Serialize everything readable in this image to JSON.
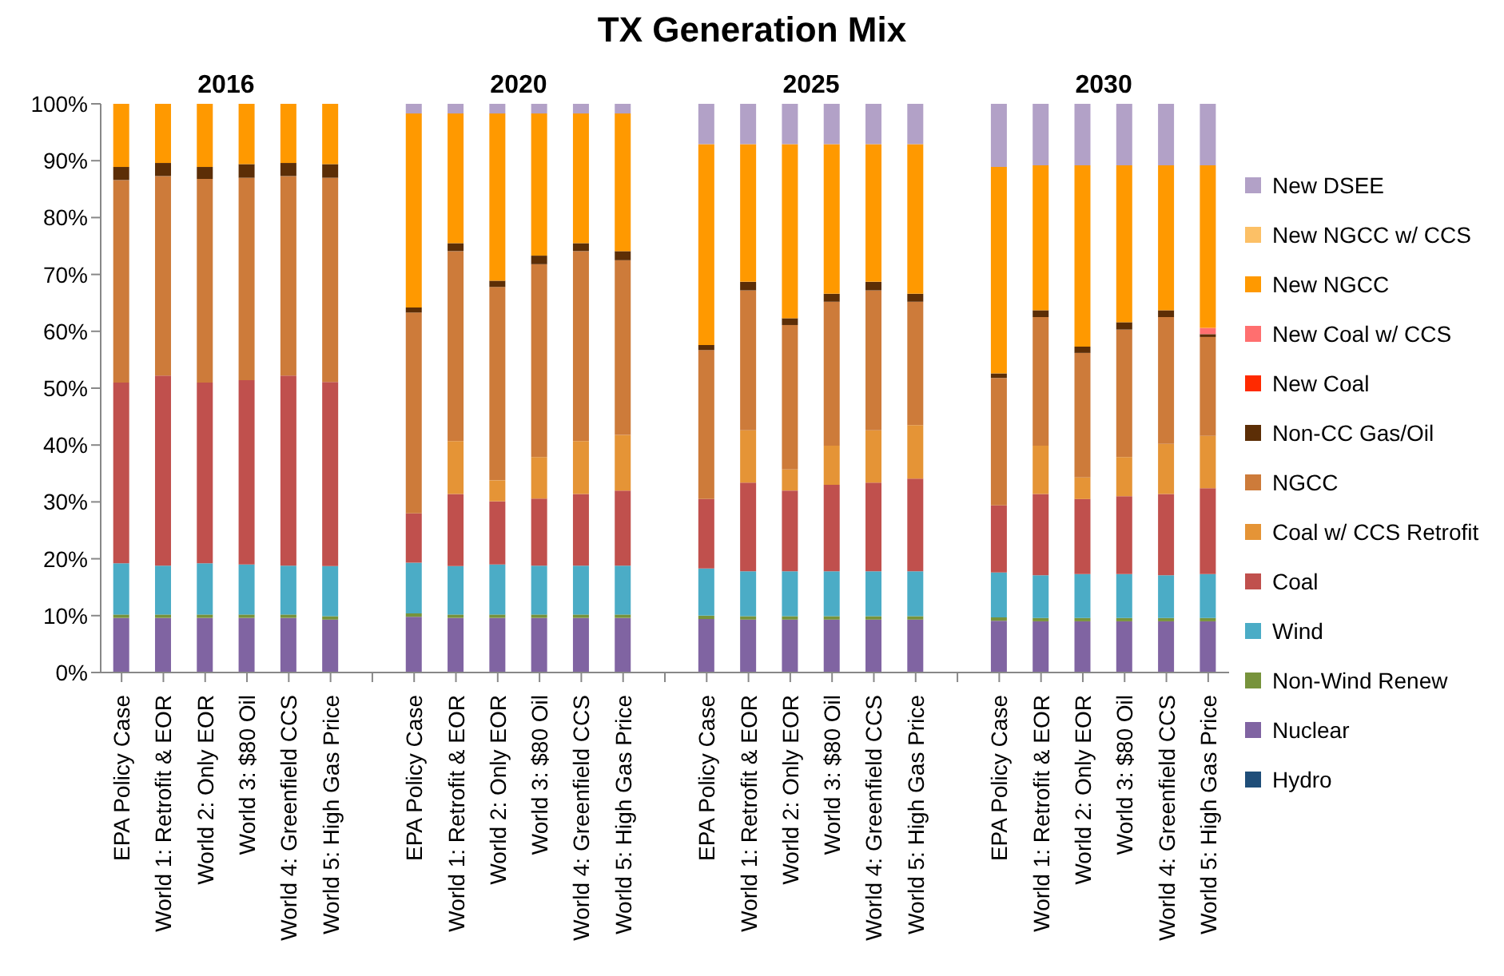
{
  "chart_data": {
    "type": "bar",
    "title": "TX Generation Mix",
    "stacked": true,
    "legend": "right",
    "grid": false,
    "annotations": [
      "2016",
      "2020",
      "2025",
      "2030"
    ],
    "categories": [
      "EPA Policy Case",
      "World 1: Retrofit & EOR",
      "World 2: Only EOR",
      "World 3: $80 Oil",
      "World 4: Greenfield CCS",
      "World 5: High Gas Price",
      null,
      "EPA Policy Case",
      "World 1: Retrofit & EOR",
      "World 2: Only EOR",
      "World 3: $80 Oil",
      "World 4: Greenfield CCS",
      "World 5: High Gas Price",
      null,
      "EPA Policy Case",
      "World 1: Retrofit & EOR",
      "World 2: Only EOR",
      "World 3: $80 Oil",
      "World 4: Greenfield CCS",
      "World 5: High Gas Price",
      null,
      "EPA Policy Case",
      "World 1: Retrofit & EOR",
      "World 2: Only EOR",
      "World 3: $80 Oil",
      "World 4: Greenfield CCS",
      "World 5: High Gas Price"
    ],
    "ylim": [
      0,
      100
    ],
    "yticks": [
      {
        "value": 0,
        "label": "0%"
      },
      {
        "value": 10,
        "label": "10%"
      },
      {
        "value": 20,
        "label": "20%"
      },
      {
        "value": 30,
        "label": "30%"
      },
      {
        "value": 40,
        "label": "40%"
      },
      {
        "value": 50,
        "label": "50%"
      },
      {
        "value": 60,
        "label": "60%"
      },
      {
        "value": 70,
        "label": "70%"
      },
      {
        "value": 80,
        "label": "80%"
      },
      {
        "value": 90,
        "label": "90%"
      },
      {
        "value": 100,
        "label": "100%"
      }
    ],
    "series": [
      {
        "name": "Hydro",
        "color": "#1f4e79",
        "values": [
          0,
          0,
          0,
          0,
          0,
          0,
          null,
          0,
          0,
          0,
          0,
          0,
          0,
          null,
          0,
          0,
          0,
          0,
          0,
          0,
          null,
          0,
          0,
          0,
          0,
          0,
          0
        ]
      },
      {
        "name": "Nuclear",
        "color": "#8064a2",
        "values": [
          9.6,
          9.6,
          9.6,
          9.6,
          9.6,
          9.3,
          null,
          9.8,
          9.6,
          9.6,
          9.6,
          9.6,
          9.6,
          null,
          9.4,
          9.3,
          9.3,
          9.3,
          9.3,
          9.3,
          null,
          9.1,
          9.0,
          9.0,
          9.0,
          9.0,
          9.0
        ]
      },
      {
        "name": "Non-Wind Renew",
        "color": "#77933c",
        "values": [
          0.6,
          0.6,
          0.6,
          0.6,
          0.6,
          0.6,
          null,
          0.6,
          0.6,
          0.6,
          0.6,
          0.6,
          0.6,
          null,
          0.6,
          0.6,
          0.6,
          0.6,
          0.6,
          0.6,
          null,
          0.6,
          0.6,
          0.6,
          0.6,
          0.6,
          0.6
        ]
      },
      {
        "name": "Wind",
        "color": "#4bacc6",
        "values": [
          9.0,
          8.6,
          9.0,
          8.8,
          8.6,
          8.8,
          null,
          8.9,
          8.5,
          8.8,
          8.6,
          8.6,
          8.6,
          null,
          8.3,
          7.9,
          7.9,
          7.9,
          7.9,
          7.9,
          null,
          7.9,
          7.5,
          7.7,
          7.7,
          7.5,
          7.7
        ]
      },
      {
        "name": "Coal",
        "color": "#c0504d",
        "values": [
          31.8,
          33.4,
          31.8,
          32.4,
          33.4,
          32.4,
          null,
          8.7,
          12.7,
          11.1,
          11.8,
          12.6,
          13.2,
          null,
          12.2,
          15.6,
          14.2,
          15.2,
          15.6,
          16.3,
          null,
          11.8,
          14.3,
          13.2,
          13.7,
          14.3,
          15.1
        ]
      },
      {
        "name": "Coal w/ CCS Retrofit",
        "color": "#e59436",
        "values": [
          0,
          0,
          0,
          0,
          0,
          0,
          null,
          0,
          9.3,
          3.7,
          7.3,
          9.3,
          9.8,
          null,
          0,
          9.2,
          3.7,
          6.9,
          9.2,
          9.4,
          null,
          0,
          8.5,
          3.8,
          6.9,
          8.8,
          9.2
        ]
      },
      {
        "name": "NGCC",
        "color": "#cd7b3a",
        "values": [
          35.6,
          35.1,
          35.8,
          35.6,
          35.1,
          35.9,
          null,
          35.3,
          33.4,
          34.0,
          33.9,
          33.4,
          30.7,
          null,
          26.2,
          24.6,
          25.4,
          25.3,
          24.6,
          21.7,
          null,
          22.4,
          22.6,
          21.9,
          22.4,
          22.3,
          17.4
        ]
      },
      {
        "name": "Non-CC Gas/Oil",
        "color": "#5c2e06",
        "values": [
          2.3,
          2.3,
          2.1,
          2.4,
          2.3,
          2.4,
          null,
          0.9,
          1.4,
          1.1,
          1.5,
          1.4,
          1.6,
          null,
          0.9,
          1.5,
          1.2,
          1.4,
          1.5,
          1.4,
          null,
          0.8,
          1.2,
          1.1,
          1.3,
          1.2,
          0.5
        ]
      },
      {
        "name": "New Coal",
        "color": "#ff2a00",
        "values": [
          0,
          0,
          0,
          0,
          0,
          0,
          null,
          0,
          0,
          0,
          0,
          0,
          0,
          null,
          0,
          0,
          0,
          0,
          0,
          0,
          null,
          0,
          0,
          0,
          0,
          0,
          0
        ]
      },
      {
        "name": "New Coal w/ CCS",
        "color": "#ff6f6f",
        "values": [
          0,
          0,
          0,
          0,
          0,
          0,
          null,
          0,
          0,
          0,
          0,
          0,
          0,
          null,
          0,
          0,
          0,
          0,
          0,
          0,
          null,
          0,
          0,
          0,
          0,
          0,
          1.1
        ]
      },
      {
        "name": "New NGCC",
        "color": "#ff9900",
        "values": [
          11.1,
          10.4,
          11.1,
          10.6,
          10.4,
          10.6,
          null,
          34.1,
          22.8,
          29.4,
          25.0,
          22.8,
          24.2,
          null,
          35.3,
          24.2,
          30.6,
          26.3,
          24.2,
          26.3,
          null,
          36.3,
          25.5,
          31.9,
          27.6,
          25.5,
          28.6
        ]
      },
      {
        "name": "New NGCC w/ CCS",
        "color": "#fcc066",
        "values": [
          0,
          0,
          0,
          0,
          0,
          0,
          null,
          0,
          0,
          0,
          0,
          0,
          0,
          null,
          0,
          0,
          0,
          0,
          0,
          0,
          null,
          0,
          0,
          0,
          0,
          0,
          0
        ]
      },
      {
        "name": "New DSEE",
        "color": "#b2a1c7",
        "values": [
          0,
          0,
          0,
          0,
          0,
          0,
          null,
          1.7,
          1.7,
          1.7,
          1.7,
          1.7,
          1.7,
          null,
          7.1,
          7.1,
          7.1,
          7.1,
          7.1,
          7.1,
          null,
          11.1,
          10.8,
          10.8,
          10.8,
          10.8,
          10.8
        ]
      }
    ]
  }
}
